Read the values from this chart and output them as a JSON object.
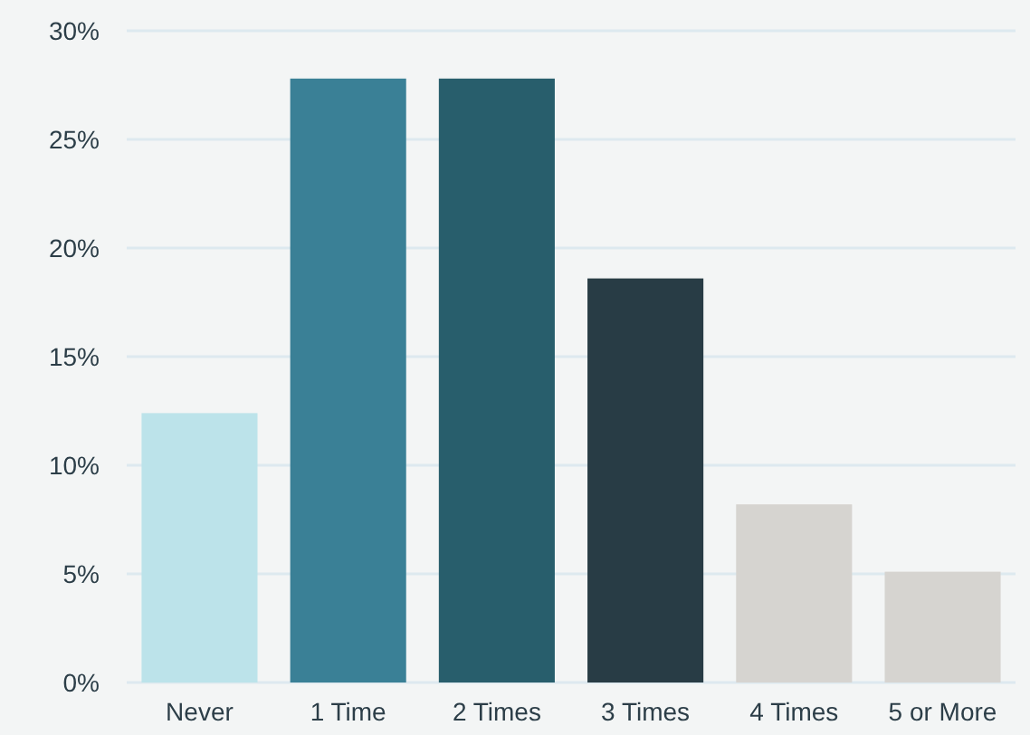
{
  "chart_data": {
    "type": "bar",
    "categories": [
      "Never",
      "1 Time",
      "2 Times",
      "3 Times",
      "4 Times",
      "5 or More"
    ],
    "values": [
      12.4,
      27.8,
      27.8,
      18.6,
      8.2,
      5.1
    ],
    "colors": [
      "#bce3ea",
      "#3a8096",
      "#285e6c",
      "#283c45",
      "#d6d4d0",
      "#d6d4d0"
    ],
    "ylim": [
      0,
      30
    ],
    "yticks": [
      {
        "value": 0,
        "label": "0%"
      },
      {
        "value": 5,
        "label": "5%"
      },
      {
        "value": 10,
        "label": "10%"
      },
      {
        "value": 15,
        "label": "15%"
      },
      {
        "value": 20,
        "label": "20%"
      },
      {
        "value": 25,
        "label": "25%"
      },
      {
        "value": 30,
        "label": "30%"
      }
    ],
    "grid": "y"
  }
}
